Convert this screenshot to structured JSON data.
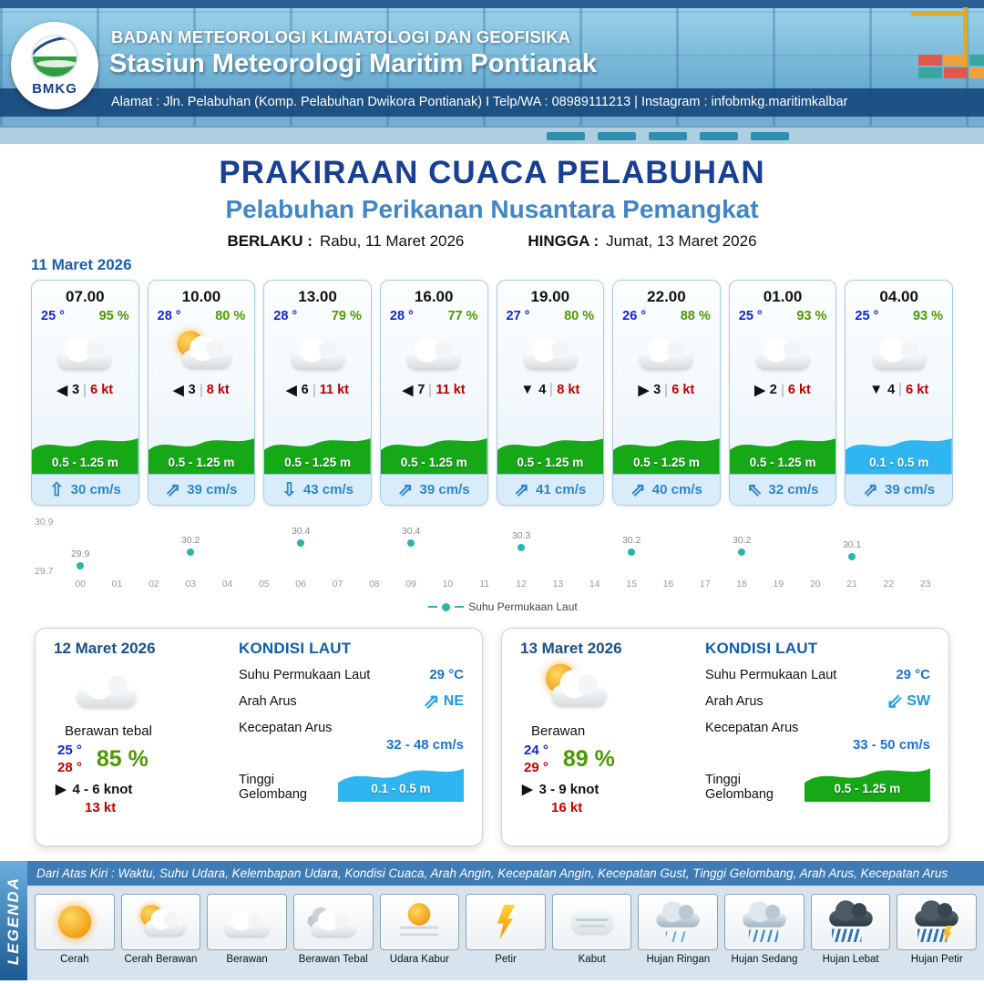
{
  "header": {
    "logo_text": "BMKG",
    "org": "BADAN METEOROLOGI KLIMATOLOGI DAN GEOFISIKA",
    "station": "Stasiun Meteorologi Maritim Pontianak",
    "address": "Alamat : Jln. Pelabuhan (Komp. Pelabuhan Dwikora Pontianak) I Telp/WA : 08989111213 | Instagram : infobmkg.maritimkalbar"
  },
  "title": {
    "main": "PRAKIRAAN CUACA PELABUHAN",
    "subtitle": "Pelabuhan Perikanan Nusantara Pemangkat",
    "valid_from_label": "BERLAKU :",
    "valid_from": "Rabu, 11 Maret 2026",
    "valid_to_label": "HINGGA :",
    "valid_to": "Jumat, 13 Maret 2026"
  },
  "forecast": {
    "date": "11 Maret 2026",
    "cards": [
      {
        "time": "07.00",
        "temp": "25 °",
        "rh": "95 %",
        "icon": "berawan",
        "wind_glyph": "◀",
        "wind_val": "3",
        "gust": "6 kt",
        "wave": "0.5 - 1.25 m",
        "wave_type": "green",
        "cur_glyph": "⇧",
        "cur": "30 cm/s"
      },
      {
        "time": "10.00",
        "temp": "28 °",
        "rh": "80 %",
        "icon": "cerah-berawan",
        "wind_glyph": "◀",
        "wind_val": "3",
        "gust": "8 kt",
        "wave": "0.5 - 1.25 m",
        "wave_type": "green",
        "cur_glyph": "⇗",
        "cur": "39 cm/s"
      },
      {
        "time": "13.00",
        "temp": "28 °",
        "rh": "79 %",
        "icon": "berawan",
        "wind_glyph": "◀",
        "wind_val": "6",
        "gust": "11 kt",
        "wave": "0.5 - 1.25 m",
        "wave_type": "green",
        "cur_glyph": "⇩",
        "cur": "43 cm/s"
      },
      {
        "time": "16.00",
        "temp": "28 °",
        "rh": "77 %",
        "icon": "berawan",
        "wind_glyph": "◀",
        "wind_val": "7",
        "gust": "11 kt",
        "wave": "0.5 - 1.25 m",
        "wave_type": "green",
        "cur_glyph": "⇗",
        "cur": "39 cm/s"
      },
      {
        "time": "19.00",
        "temp": "27 °",
        "rh": "80 %",
        "icon": "berawan",
        "wind_glyph": "▼",
        "wind_val": "4",
        "gust": "8 kt",
        "wave": "0.5 - 1.25 m",
        "wave_type": "green",
        "cur_glyph": "⇗",
        "cur": "41 cm/s"
      },
      {
        "time": "22.00",
        "temp": "26 °",
        "rh": "88 %",
        "icon": "berawan",
        "wind_glyph": "▶",
        "wind_val": "3",
        "gust": "6 kt",
        "wave": "0.5 - 1.25 m",
        "wave_type": "green",
        "cur_glyph": "⇗",
        "cur": "40 cm/s"
      },
      {
        "time": "01.00",
        "temp": "25 °",
        "rh": "93 %",
        "icon": "berawan",
        "wind_glyph": "▶",
        "wind_val": "2",
        "gust": "6 kt",
        "wave": "0.5 - 1.25 m",
        "wave_type": "green",
        "cur_glyph": "⇖",
        "cur": "32 cm/s"
      },
      {
        "time": "04.00",
        "temp": "25 °",
        "rh": "93 %",
        "icon": "berawan",
        "wind_glyph": "▼",
        "wind_val": "4",
        "gust": "6 kt",
        "wave": "0.1 - 0.5 m",
        "wave_type": "blue",
        "cur_glyph": "⇗",
        "cur": "39 cm/s"
      }
    ]
  },
  "chart_data": {
    "type": "scatter",
    "series_name": "Suhu Permukaan Laut",
    "x": [
      0,
      3,
      6,
      9,
      12,
      15,
      18,
      21
    ],
    "values": [
      29.9,
      30.2,
      30.4,
      30.4,
      30.3,
      30.2,
      30.2,
      30.1
    ],
    "x_ticks": [
      "00",
      "01",
      "02",
      "03",
      "04",
      "05",
      "06",
      "07",
      "08",
      "09",
      "10",
      "11",
      "12",
      "13",
      "14",
      "15",
      "16",
      "17",
      "18",
      "19",
      "20",
      "21",
      "22",
      "23"
    ],
    "ylim": [
      29.7,
      30.9
    ],
    "y_ticks": [
      "30.9",
      "29.7"
    ],
    "dot_color": "#29b5a8",
    "grid": false,
    "legend_position": "bottom"
  },
  "daily": [
    {
      "date": "12 Maret 2026",
      "icon": "berawan",
      "condition": "Berawan tebal",
      "temp_min": "25 °",
      "temp_max": "28 °",
      "rh": "85 %",
      "wind_glyph": "▶",
      "wind": "4 - 6 knot",
      "gust": "13 kt",
      "sea": {
        "title": "KONDISI LAUT",
        "sst_label": "Suhu Permukaan Laut",
        "sst": "29 °C",
        "current_dir_label": "Arah Arus",
        "current_dir_glyph": "⇗",
        "current_dir": "NE",
        "current_speed_label": "Kecepatan Arus",
        "current_speed": "32 - 48 cm/s",
        "wave_label": "Tinggi Gelombang",
        "wave": "0.1 - 0.5 m",
        "wave_type": "blue"
      }
    },
    {
      "date": "13 Maret 2026",
      "icon": "cerah-berawan",
      "condition": "Berawan",
      "temp_min": "24 °",
      "temp_max": "29 °",
      "rh": "89 %",
      "wind_glyph": "▶",
      "wind": "3 - 9 knot",
      "gust": "16 kt",
      "sea": {
        "title": "KONDISI LAUT",
        "sst_label": "Suhu Permukaan Laut",
        "sst": "29 °C",
        "current_dir_label": "Arah Arus",
        "current_dir_glyph": "⇙",
        "current_dir": "SW",
        "current_speed_label": "Kecepatan Arus",
        "current_speed": "33 - 50 cm/s",
        "wave_label": "Tinggi Gelombang",
        "wave": "0.5 - 1.25 m",
        "wave_type": "green"
      }
    }
  ],
  "legend": {
    "vertical_label": "LEGENDA",
    "description": "Dari Atas Kiri : Waktu, Suhu Udara, Kelembapan Udara, Kondisi Cuaca, Arah Angin, Kecepatan Angin, Kecepatan Gust, Tinggi Gelombang, Arah Arus, Kecepatan Arus",
    "items": [
      {
        "label": "Cerah",
        "icon": "cerah"
      },
      {
        "label": "Cerah Berawan",
        "icon": "cerah-berawan"
      },
      {
        "label": "Berawan",
        "icon": "berawan"
      },
      {
        "label": "Berawan Tebal",
        "icon": "berawan-tebal"
      },
      {
        "label": "Udara Kabur",
        "icon": "udara-kabur"
      },
      {
        "label": "Petir",
        "icon": "petir"
      },
      {
        "label": "Kabut",
        "icon": "kabut"
      },
      {
        "label": "Hujan Ringan",
        "icon": "hujan-ringan"
      },
      {
        "label": "Hujan Sedang",
        "icon": "hujan-sedang"
      },
      {
        "label": "Hujan Lebat",
        "icon": "hujan-lebat"
      },
      {
        "label": "Hujan Petir",
        "icon": "hujan-petir"
      }
    ]
  },
  "colors": {
    "title_navy": "#183f92",
    "subtitle_blue": "#4286c6",
    "temp_blue": "#1526cf",
    "rh_green": "#4c9a00",
    "gust_red": "#c00000",
    "wave_green": "#17a817",
    "wave_blue": "#2fb5f0",
    "current_blue": "#2e86c9",
    "sst_dot_teal": "#29b5a8"
  }
}
